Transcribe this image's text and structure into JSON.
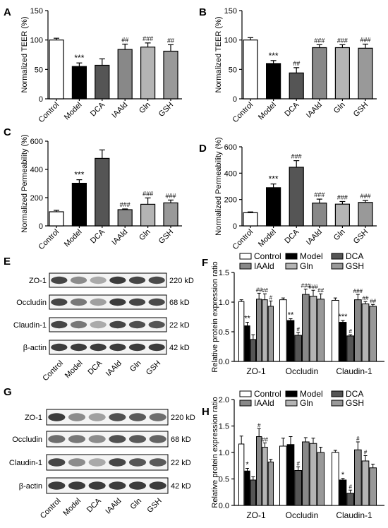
{
  "figure": {
    "colors": {
      "control": "#ffffff",
      "model": "#000000",
      "dca": "#555555",
      "iaald": "#888888",
      "gln": "#b4b4b4",
      "gsh": "#999999",
      "axis": "#000000"
    }
  },
  "chart_data": [
    {
      "id": "A",
      "panel_label": "A",
      "type": "bar",
      "categories": [
        "Control",
        "Model",
        "DCA",
        "IAAld",
        "Gln",
        "GSH"
      ],
      "values": [
        100,
        55,
        57,
        84,
        88,
        81
      ],
      "errors": [
        3,
        6,
        11,
        9,
        7,
        11
      ],
      "annotations": [
        "",
        "***",
        "",
        "##",
        "###",
        "##"
      ],
      "ylabel": "Normalized TEER (%)",
      "xlabel": "",
      "ylim": [
        0,
        150
      ],
      "yticks": [
        0,
        50,
        100,
        150
      ]
    },
    {
      "id": "B",
      "panel_label": "B",
      "type": "bar",
      "categories": [
        "Control",
        "Model",
        "DCA",
        "IAAld",
        "Gln",
        "GSH"
      ],
      "values": [
        100,
        60,
        44,
        87,
        87,
        86
      ],
      "errors": [
        4,
        5,
        9,
        5,
        5,
        7
      ],
      "annotations": [
        "",
        "***",
        "##",
        "###",
        "###",
        "###"
      ],
      "ylabel": "Normalized TEER (%)",
      "xlabel": "",
      "ylim": [
        0,
        150
      ],
      "yticks": [
        0,
        50,
        100,
        150
      ]
    },
    {
      "id": "C",
      "panel_label": "C",
      "type": "bar",
      "categories": [
        "Control",
        "Model",
        "DCA",
        "IAAld",
        "Gln",
        "GSH"
      ],
      "values": [
        100,
        302,
        478,
        115,
        153,
        163
      ],
      "errors": [
        10,
        25,
        60,
        5,
        45,
        20
      ],
      "annotations": [
        "",
        "***",
        "",
        "###",
        "###",
        "###"
      ],
      "ylabel": "Normalized Permeability (%)",
      "xlabel": "",
      "ylim": [
        0,
        600
      ],
      "yticks": [
        0,
        200,
        400,
        600
      ]
    },
    {
      "id": "D",
      "panel_label": "D",
      "type": "bar",
      "categories": [
        "Control",
        "Model",
        "DCA",
        "IAAld",
        "Gln",
        "GSH"
      ],
      "values": [
        100,
        290,
        445,
        173,
        165,
        178
      ],
      "errors": [
        6,
        28,
        50,
        30,
        20,
        15
      ],
      "annotations": [
        "",
        "***",
        "###",
        "###",
        "###",
        "###"
      ],
      "ylabel": "Normalized Permeability (%)",
      "xlabel": "",
      "ylim": [
        0,
        600
      ],
      "yticks": [
        0,
        200,
        400,
        600
      ]
    },
    {
      "id": "F",
      "panel_label": "F",
      "type": "bar",
      "categories": [
        "ZO-1",
        "Occludin",
        "Claudin-1"
      ],
      "series": [
        {
          "name": "Control",
          "values": [
            1.01,
            1.04,
            1.03
          ],
          "errors": [
            0.03,
            0.03,
            0.04
          ],
          "annotations": [
            "",
            "",
            ""
          ]
        },
        {
          "name": "Model",
          "values": [
            0.6,
            0.69,
            0.66
          ],
          "errors": [
            0.06,
            0.03,
            0.03
          ],
          "annotations": [
            "**",
            "**",
            "***"
          ]
        },
        {
          "name": "DCA",
          "values": [
            0.37,
            0.44,
            0.43
          ],
          "errors": [
            0.08,
            0.05,
            0.02
          ],
          "annotations": [
            "",
            "#",
            "#"
          ]
        },
        {
          "name": "IAAld",
          "values": [
            1.05,
            1.13,
            1.04
          ],
          "errors": [
            0.1,
            0.09,
            0.09
          ],
          "annotations": [
            "##",
            "###",
            "###"
          ]
        },
        {
          "name": "Gln",
          "values": [
            1.04,
            1.1,
            0.97
          ],
          "errors": [
            0.1,
            0.1,
            0.04
          ],
          "annotations": [
            "##",
            "###",
            "##"
          ]
        },
        {
          "name": "GSH",
          "values": [
            0.93,
            1.05,
            0.93
          ],
          "errors": [
            0.09,
            0.09,
            0.03
          ],
          "annotations": [
            "#",
            "##",
            "##"
          ]
        }
      ],
      "legend": {
        "placement": "top",
        "columns": 3
      },
      "ylabel": "Relative protein expression ratio",
      "xlabel": "",
      "ylim": [
        0,
        1.5
      ],
      "yticks": [
        0.0,
        0.5,
        1.0,
        1.5
      ],
      "ytick_labels": [
        "0.0",
        "0.5",
        "1.0",
        "1.5"
      ]
    },
    {
      "id": "H",
      "panel_label": "H",
      "type": "bar",
      "categories": [
        "ZO-1",
        "Occludin",
        "Claudin-1"
      ],
      "series": [
        {
          "name": "Control",
          "values": [
            1.16,
            1.12,
            1.0
          ],
          "errors": [
            0.15,
            0.15,
            0.04
          ],
          "annotations": [
            "",
            "",
            ""
          ]
        },
        {
          "name": "Model",
          "values": [
            0.65,
            1.15,
            0.48
          ],
          "errors": [
            0.05,
            0.15,
            0.03
          ],
          "annotations": [
            "*",
            "",
            "*"
          ]
        },
        {
          "name": "DCA",
          "values": [
            0.48,
            0.66,
            0.23
          ],
          "errors": [
            0.06,
            0.07,
            0.06
          ],
          "annotations": [
            "",
            "#",
            "#"
          ]
        },
        {
          "name": "IAAld",
          "values": [
            1.3,
            1.2,
            1.05
          ],
          "errors": [
            0.15,
            0.08,
            0.15
          ],
          "annotations": [
            "#",
            "",
            "#"
          ]
        },
        {
          "name": "Gln",
          "values": [
            1.1,
            1.17,
            0.84
          ],
          "errors": [
            0.08,
            0.1,
            0.1
          ],
          "annotations": [
            "##",
            "",
            "#"
          ]
        },
        {
          "name": "GSH",
          "values": [
            0.82,
            1.0,
            0.71
          ],
          "errors": [
            0.05,
            0.1,
            0.07
          ],
          "annotations": [
            "",
            "",
            ""
          ]
        }
      ],
      "legend": {
        "placement": "top",
        "columns": 3
      },
      "ylabel": "Relative protein expression ratio",
      "xlabel": "",
      "ylim": [
        0,
        2.0
      ],
      "yticks": [
        0.0,
        0.5,
        1.0,
        1.5,
        2.0
      ],
      "ytick_labels": [
        "0.0",
        "0.5",
        "1.0",
        "1.5",
        "2.0"
      ]
    }
  ],
  "blots": [
    {
      "id": "E",
      "panel_label": "E",
      "lanes": [
        "Control",
        "Model",
        "DCA",
        "IAAld",
        "Gln",
        "GSH"
      ],
      "rows": [
        {
          "protein": "ZO-1",
          "size": "220 kD",
          "intensity": [
            0.8,
            0.45,
            0.3,
            0.85,
            0.8,
            0.78
          ]
        },
        {
          "protein": "Occludin",
          "size": "68 kD",
          "intensity": [
            0.8,
            0.55,
            0.35,
            0.85,
            0.8,
            0.78
          ]
        },
        {
          "protein": "Claudin-1",
          "size": "22 kD",
          "intensity": [
            0.8,
            0.55,
            0.3,
            0.8,
            0.75,
            0.72
          ]
        },
        {
          "protein": "β-actin",
          "size": "42 kD",
          "intensity": [
            0.85,
            0.85,
            0.85,
            0.85,
            0.85,
            0.85
          ]
        }
      ]
    },
    {
      "id": "G",
      "panel_label": "G",
      "lanes": [
        "Control",
        "Model",
        "DCA",
        "IAAld",
        "Gln",
        "GSH"
      ],
      "rows": [
        {
          "protein": "ZO-1",
          "size": "220 kD",
          "intensity": [
            0.85,
            0.45,
            0.35,
            0.75,
            0.7,
            0.6
          ]
        },
        {
          "protein": "Occludin",
          "size": "68 kD",
          "intensity": [
            0.6,
            0.55,
            0.45,
            0.75,
            0.7,
            0.65
          ]
        },
        {
          "protein": "Claudin-1",
          "size": "22 kD",
          "intensity": [
            0.8,
            0.45,
            0.3,
            0.8,
            0.72,
            0.7
          ]
        },
        {
          "protein": "β-actin",
          "size": "42 kD",
          "intensity": [
            0.85,
            0.85,
            0.85,
            0.85,
            0.85,
            0.85
          ]
        }
      ]
    }
  ]
}
